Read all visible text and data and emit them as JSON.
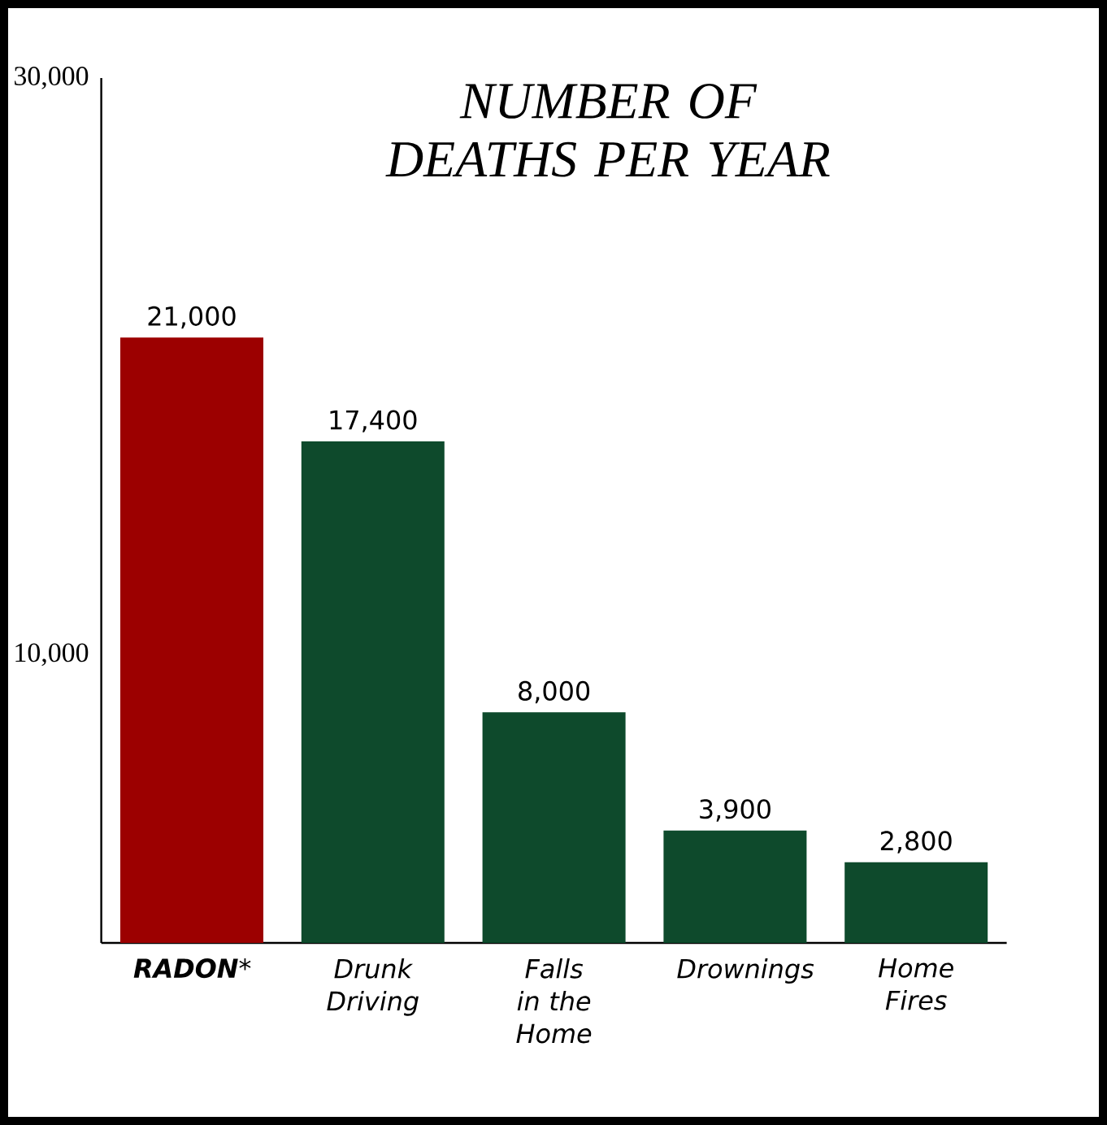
{
  "chart_data": {
    "type": "bar",
    "title": "NUMBER OF DEATHS PER YEAR",
    "categories": [
      "**RADON***",
      "Drunk Driving",
      "Falls in the Home",
      "Drownings",
      "Home Fires"
    ],
    "values": [
      21000,
      17400,
      8000,
      3900,
      2800
    ],
    "value_labels": [
      "21,000",
      "17,400",
      "8,000",
      "3,900",
      "2,800"
    ],
    "colors": [
      "#9c0000",
      "#0e4a2c",
      "#0e4a2c",
      "#0e4a2c",
      "#0e4a2c"
    ],
    "ylim": [
      0,
      30000
    ],
    "yticks": [
      {
        "value": 10000,
        "label": "10,000"
      },
      {
        "value": 30000,
        "label": "30,000"
      }
    ],
    "grid": false
  }
}
